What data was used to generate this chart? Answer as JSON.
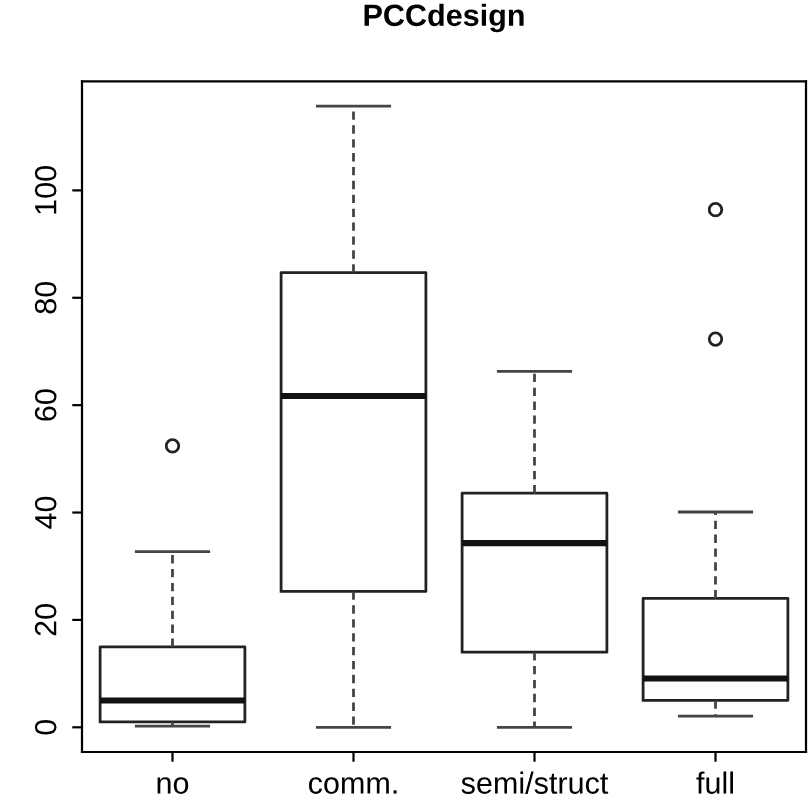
{
  "chart_data": {
    "type": "box",
    "title": "PCCdesign",
    "categories": [
      "no",
      "comm.",
      "semi/struct",
      "full"
    ],
    "boxes": [
      {
        "low": 0.2,
        "q1": 1,
        "median": 5,
        "q3": 15,
        "high": 32.7,
        "outliers": [
          52.4
        ]
      },
      {
        "low": 0,
        "q1": 25.3,
        "median": 61.7,
        "q3": 84.7,
        "high": 115.7
      },
      {
        "low": 0,
        "q1": 14,
        "median": 34.3,
        "q3": 43.6,
        "high": 66.3
      },
      {
        "low": 2.1,
        "q1": 5,
        "median": 9.1,
        "q3": 24,
        "high": 40.1,
        "outliers": [
          72.3,
          96.4
        ]
      }
    ],
    "ylim": [
      -4.6,
      120.3
    ],
    "yticks": [
      0,
      20,
      40,
      60,
      80,
      100
    ],
    "grid": false
  }
}
